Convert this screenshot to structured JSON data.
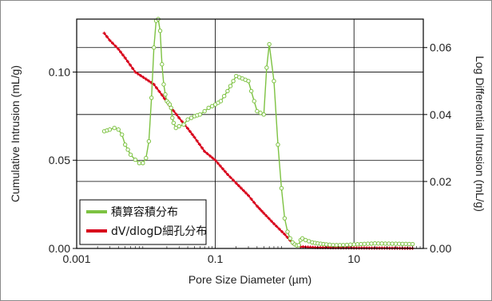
{
  "chart_data": {
    "type": "line",
    "title": "",
    "xlabel": "Pore Size Diameter (µm)",
    "ylabel": "Cumulative Intrusion (mL/g)",
    "y2label": "Log Differential Intrusion (mL/g)",
    "x_scale": "log",
    "xlim": [
      0.001,
      100
    ],
    "ylim": [
      0.0,
      0.13
    ],
    "y2lim": [
      0.0,
      0.0685
    ],
    "x_ticks": [
      0.001,
      0.1,
      10
    ],
    "x_tick_labels": [
      "0.001",
      "0.1",
      "10"
    ],
    "y_ticks": [
      0.0,
      0.05,
      0.1
    ],
    "y_tick_labels": [
      "0.00",
      "0.05",
      "0.10"
    ],
    "y2_ticks": [
      0.0,
      0.02,
      0.04,
      0.06
    ],
    "y2_tick_labels": [
      "0.00",
      "0.02",
      "0.04",
      "0.06"
    ],
    "grid": true,
    "legend_position": "bottom-left",
    "series": [
      {
        "name": "積算容積分布",
        "color": "#7dc242",
        "axis": "right",
        "marker": "circle",
        "x": [
          0.0025,
          0.003,
          0.0035,
          0.004,
          0.0045,
          0.005,
          0.006,
          0.007,
          0.008,
          0.009,
          0.01,
          0.011,
          0.012,
          0.013,
          0.014,
          0.015,
          0.016,
          0.017,
          0.018,
          0.019,
          0.02,
          0.021,
          0.022,
          0.023,
          0.024,
          0.025,
          0.027,
          0.03,
          0.035,
          0.04,
          0.045,
          0.05,
          0.06,
          0.07,
          0.08,
          0.09,
          0.1,
          0.12,
          0.15,
          0.2,
          0.3,
          0.4,
          0.5,
          0.55,
          0.6,
          0.7,
          0.8,
          0.9,
          1.0,
          1.1,
          1.2,
          1.3,
          1.4,
          1.5,
          1.6,
          1.7,
          1.8,
          2.0,
          2.5,
          3.0,
          4.0,
          5.0,
          7.0,
          10.0,
          20.0,
          40.0,
          70.0
        ],
        "y": [
          0.035,
          0.0355,
          0.036,
          0.0355,
          0.034,
          0.031,
          0.028,
          0.0265,
          0.0255,
          0.0255,
          0.027,
          0.032,
          0.045,
          0.06,
          0.068,
          0.0685,
          0.065,
          0.055,
          0.049,
          0.046,
          0.044,
          0.0435,
          0.043,
          0.042,
          0.039,
          0.0375,
          0.036,
          0.0365,
          0.037,
          0.0385,
          0.039,
          0.0395,
          0.04,
          0.041,
          0.042,
          0.0425,
          0.043,
          0.044,
          0.047,
          0.0515,
          0.05,
          0.041,
          0.04,
          0.054,
          0.061,
          0.05,
          0.031,
          0.018,
          0.009,
          0.005,
          0.003,
          0.0018,
          0.0012,
          0.0009,
          0.001,
          0.0025,
          0.003,
          0.0025,
          0.0018,
          0.0015,
          0.0012,
          0.001,
          0.001,
          0.0012,
          0.0015,
          0.0014,
          0.0013
        ]
      },
      {
        "name": "dV/dlogD細孔分布",
        "color": "#d8001b",
        "axis": "left",
        "marker": "plus",
        "x": [
          0.0025,
          0.003,
          0.004,
          0.005,
          0.007,
          0.01,
          0.013,
          0.017,
          0.02,
          0.025,
          0.03,
          0.04,
          0.05,
          0.07,
          0.1,
          0.15,
          0.2,
          0.3,
          0.4,
          0.5,
          0.7,
          1.0,
          1.3,
          1.5,
          1.7,
          2.0,
          3.0,
          5.0,
          10.0,
          30.0,
          70.0
        ],
        "y": [
          0.122,
          0.118,
          0.113,
          0.108,
          0.1,
          0.096,
          0.093,
          0.087,
          0.083,
          0.078,
          0.074,
          0.068,
          0.063,
          0.055,
          0.05,
          0.042,
          0.037,
          0.03,
          0.024,
          0.02,
          0.014,
          0.008,
          0.003,
          0.0015,
          0.001,
          0.0008,
          0.0005,
          0.0004,
          0.0003,
          0.0002,
          0.0001
        ]
      }
    ]
  }
}
